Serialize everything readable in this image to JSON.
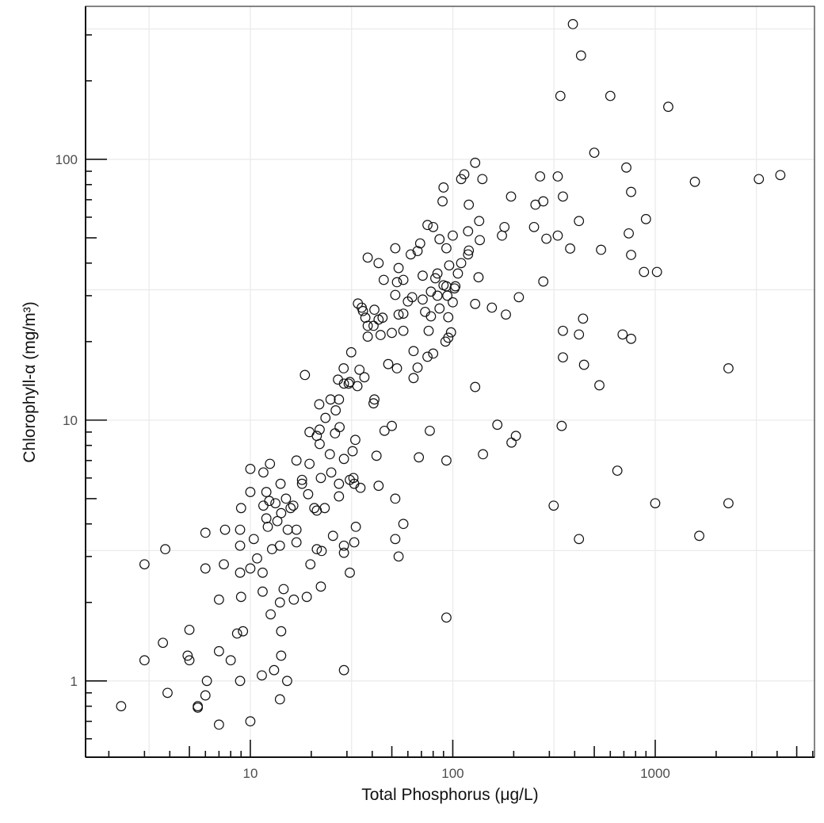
{
  "chart_data": {
    "type": "scatter",
    "title": "",
    "xlabel": "Total Phosphorus (μg/L)",
    "ylabel": "Chlorophyll-α (mg/m³)",
    "xscale": "log10",
    "yscale": "log10",
    "xlim": [
      1.535,
      6120
    ],
    "ylim": [
      0.51,
      386
    ],
    "x_tick_labels": [
      "10",
      "100",
      "1000"
    ],
    "y_tick_labels": [
      "1",
      "10",
      "100"
    ],
    "grid": true,
    "marker": "open-circle",
    "marker_color": "#111111",
    "points": [
      [
        2.3,
        0.8
      ],
      [
        3.0,
        2.8
      ],
      [
        3.0,
        1.2
      ],
      [
        3.8,
        3.2
      ],
      [
        3.7,
        1.4
      ],
      [
        3.9,
        0.9
      ],
      [
        5.0,
        1.57
      ],
      [
        4.9,
        1.25
      ],
      [
        5.0,
        1.2
      ],
      [
        5.5,
        0.8
      ],
      [
        5.5,
        0.79
      ],
      [
        6.1,
        1.0
      ],
      [
        6.0,
        0.88
      ],
      [
        6.0,
        3.7
      ],
      [
        6.0,
        2.7
      ],
      [
        7.0,
        1.3
      ],
      [
        7.0,
        0.68
      ],
      [
        7.0,
        2.05
      ],
      [
        7.5,
        3.8
      ],
      [
        7.4,
        2.8
      ],
      [
        8.0,
        1.2
      ],
      [
        8.6,
        1.52
      ],
      [
        9.2,
        1.55
      ],
      [
        8.9,
        1.0
      ],
      [
        8.9,
        3.8
      ],
      [
        8.9,
        3.3
      ],
      [
        8.9,
        2.6
      ],
      [
        9.0,
        2.1
      ],
      [
        9.0,
        4.6
      ],
      [
        10,
        6.5
      ],
      [
        10,
        5.3
      ],
      [
        10,
        2.7
      ],
      [
        10,
        0.7
      ],
      [
        10.4,
        3.5
      ],
      [
        10.8,
        2.95
      ],
      [
        11.4,
        1.05
      ],
      [
        11.5,
        2.2
      ],
      [
        11.5,
        2.6
      ],
      [
        11.6,
        6.3
      ],
      [
        11.6,
        4.7
      ],
      [
        12,
        5.3
      ],
      [
        12,
        4.2
      ],
      [
        12.2,
        3.9
      ],
      [
        12.5,
        6.8
      ],
      [
        12.4,
        4.9
      ],
      [
        12.8,
        3.2
      ],
      [
        12.6,
        1.8
      ],
      [
        13.1,
        1.1
      ],
      [
        13.3,
        4.8
      ],
      [
        13.6,
        4.1
      ],
      [
        14,
        0.85
      ],
      [
        14.2,
        4.4
      ],
      [
        14.1,
        5.7
      ],
      [
        14,
        3.3
      ],
      [
        14,
        2.0
      ],
      [
        14.2,
        1.25
      ],
      [
        14.2,
        1.55
      ],
      [
        14.6,
        2.25
      ],
      [
        15,
        5.0
      ],
      [
        15.2,
        1.0
      ],
      [
        15.3,
        3.8
      ],
      [
        15.8,
        4.6
      ],
      [
        16.3,
        4.7
      ],
      [
        16.9,
        7.0
      ],
      [
        16.9,
        3.8
      ],
      [
        16.9,
        3.4
      ],
      [
        16.4,
        2.05
      ],
      [
        18,
        5.9
      ],
      [
        18,
        5.7
      ],
      [
        18.6,
        14.9
      ],
      [
        19,
        2.1
      ],
      [
        19.3,
        5.2
      ],
      [
        19.6,
        9.0
      ],
      [
        19.6,
        6.8
      ],
      [
        19.8,
        2.8
      ],
      [
        20.7,
        4.6
      ],
      [
        21.3,
        4.5
      ],
      [
        21.3,
        8.7
      ],
      [
        21.3,
        3.2
      ],
      [
        21.9,
        11.5
      ],
      [
        22,
        9.2
      ],
      [
        22,
        8.1
      ],
      [
        22.3,
        6.0
      ],
      [
        22.3,
        2.3
      ],
      [
        22.5,
        3.15
      ],
      [
        23.3,
        4.6
      ],
      [
        23.5,
        10.2
      ],
      [
        24.9,
        12
      ],
      [
        24.7,
        7.4
      ],
      [
        25.1,
        6.3
      ],
      [
        25.6,
        3.6
      ],
      [
        26.4,
        10.9
      ],
      [
        26.2,
        8.9
      ],
      [
        27.4,
        12
      ],
      [
        27.1,
        14.3
      ],
      [
        27.4,
        5.7
      ],
      [
        27.4,
        5.1
      ],
      [
        27.6,
        9.4
      ],
      [
        28.9,
        15.8
      ],
      [
        29,
        7.1
      ],
      [
        29,
        13.8
      ],
      [
        29,
        1.1
      ],
      [
        29,
        3.3
      ],
      [
        29,
        3.1
      ],
      [
        30.6,
        13.8
      ],
      [
        31,
        14
      ],
      [
        31.5,
        18.2
      ],
      [
        31,
        5.9
      ],
      [
        31,
        2.6
      ],
      [
        32,
        7.6
      ],
      [
        32.3,
        6.0
      ],
      [
        32.6,
        5.7
      ],
      [
        32.6,
        3.4
      ],
      [
        33,
        8.4
      ],
      [
        33.2,
        3.9
      ],
      [
        33.8,
        13.5
      ],
      [
        34.6,
        15.6
      ],
      [
        35,
        5.5
      ],
      [
        36.6,
        14.6
      ],
      [
        34,
        28
      ],
      [
        35.5,
        27
      ],
      [
        36,
        26.2
      ],
      [
        41,
        12
      ],
      [
        40.6,
        11.6
      ],
      [
        46,
        9.1
      ],
      [
        50,
        9.5
      ],
      [
        42,
        7.3
      ],
      [
        43,
        5.6
      ],
      [
        52,
        5.0
      ],
      [
        57,
        4.0
      ],
      [
        52,
        3.5
      ],
      [
        54,
        3.0
      ],
      [
        129,
        97
      ],
      [
        114,
        87.6
      ],
      [
        110,
        84
      ],
      [
        140,
        84
      ],
      [
        90,
        78
      ],
      [
        194,
        72
      ],
      [
        89,
        69
      ],
      [
        120,
        67
      ],
      [
        75,
        56
      ],
      [
        80,
        55
      ],
      [
        135,
        58
      ],
      [
        180,
        55
      ],
      [
        175,
        51
      ],
      [
        119,
        53
      ],
      [
        86,
        49.4
      ],
      [
        100,
        51
      ],
      [
        136,
        49
      ],
      [
        52,
        45.6
      ],
      [
        69,
        47.6
      ],
      [
        67,
        44.5
      ],
      [
        62,
        43.2
      ],
      [
        93,
        45.6
      ],
      [
        38,
        42
      ],
      [
        43,
        40
      ],
      [
        120,
        44.7
      ],
      [
        119,
        43.2
      ],
      [
        96,
        39.2
      ],
      [
        110,
        40
      ],
      [
        54,
        38.3
      ],
      [
        45.6,
        34.5
      ],
      [
        53,
        33.8
      ],
      [
        57,
        34.5
      ],
      [
        71,
        35.8
      ],
      [
        84,
        36.5
      ],
      [
        106,
        36.5
      ],
      [
        82,
        35
      ],
      [
        134,
        35.3
      ],
      [
        90,
        32.9
      ],
      [
        93,
        32.6
      ],
      [
        103,
        32.6
      ],
      [
        78,
        31.1
      ],
      [
        84,
        30
      ],
      [
        94,
        30
      ],
      [
        102,
        32
      ],
      [
        52,
        30.2
      ],
      [
        63,
        29.6
      ],
      [
        60,
        28.5
      ],
      [
        71,
        29
      ],
      [
        212,
        29.6
      ],
      [
        100,
        28.3
      ],
      [
        129,
        27.9
      ],
      [
        156,
        27
      ],
      [
        183,
        25.4
      ],
      [
        73,
        26
      ],
      [
        78,
        25
      ],
      [
        86,
        26.8
      ],
      [
        95,
        24.8
      ],
      [
        54,
        25.4
      ],
      [
        57,
        25.6
      ],
      [
        41,
        26.5
      ],
      [
        37,
        24.7
      ],
      [
        45,
        24.7
      ],
      [
        43,
        24.3
      ],
      [
        38,
        23
      ],
      [
        40.6,
        23
      ],
      [
        38,
        20.9
      ],
      [
        44,
        21.2
      ],
      [
        50,
        21.6
      ],
      [
        57,
        22
      ],
      [
        76,
        22
      ],
      [
        98,
        21.7
      ],
      [
        95,
        20.7
      ],
      [
        92,
        20
      ],
      [
        64,
        18.4
      ],
      [
        80,
        18
      ],
      [
        75,
        17.5
      ],
      [
        48,
        16.4
      ],
      [
        53,
        15.8
      ],
      [
        67,
        15.9
      ],
      [
        64,
        14.5
      ],
      [
        129,
        13.4
      ],
      [
        392,
        330
      ],
      [
        430,
        250
      ],
      [
        340,
        175
      ],
      [
        600,
        175
      ],
      [
        1160,
        159
      ],
      [
        500,
        106
      ],
      [
        1570,
        82
      ],
      [
        3250,
        84
      ],
      [
        4150,
        87
      ],
      [
        330,
        86
      ],
      [
        270,
        86
      ],
      [
        350,
        72
      ],
      [
        720,
        93
      ],
      [
        760,
        75
      ],
      [
        256,
        67
      ],
      [
        280,
        69
      ],
      [
        252,
        55
      ],
      [
        420,
        58
      ],
      [
        900,
        59
      ],
      [
        330,
        51
      ],
      [
        290,
        49.6
      ],
      [
        740,
        52
      ],
      [
        380,
        45.5
      ],
      [
        540,
        45
      ],
      [
        760,
        43
      ],
      [
        880,
        37
      ],
      [
        1020,
        37
      ],
      [
        280,
        34
      ],
      [
        350,
        22
      ],
      [
        440,
        24.5
      ],
      [
        420,
        21.3
      ],
      [
        690,
        21.3
      ],
      [
        760,
        20.5
      ],
      [
        350,
        17.4
      ],
      [
        445,
        16.3
      ],
      [
        530,
        13.6
      ],
      [
        2300,
        15.8
      ],
      [
        166,
        9.6
      ],
      [
        205,
        8.7
      ],
      [
        195,
        8.2
      ],
      [
        345,
        9.5
      ],
      [
        141,
        7.4
      ],
      [
        650,
        6.4
      ],
      [
        315,
        4.7
      ],
      [
        1000,
        4.8
      ],
      [
        2300,
        4.8
      ],
      [
        420,
        3.5
      ],
      [
        1650,
        3.6
      ],
      [
        93,
        1.75
      ],
      [
        93,
        7.0
      ],
      [
        77,
        9.1
      ],
      [
        68,
        7.2
      ]
    ]
  }
}
